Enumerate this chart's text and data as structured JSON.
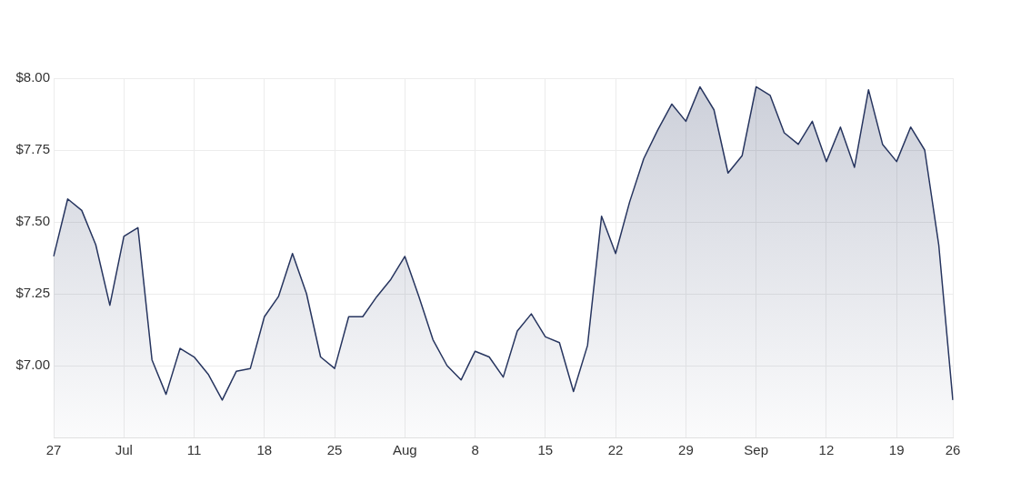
{
  "chart_data": {
    "type": "area",
    "categories": [
      "27",
      null,
      null,
      null,
      null,
      "Jul",
      null,
      null,
      null,
      null,
      "11",
      null,
      null,
      null,
      null,
      "18",
      null,
      null,
      null,
      null,
      "25",
      null,
      null,
      null,
      null,
      "Aug",
      null,
      null,
      null,
      null,
      "8",
      null,
      null,
      null,
      null,
      "15",
      null,
      null,
      null,
      null,
      "22",
      null,
      null,
      null,
      null,
      "29",
      null,
      null,
      null,
      null,
      "Sep",
      null,
      null,
      null,
      null,
      "12",
      null,
      null,
      null,
      null,
      "19",
      null,
      null,
      null,
      "26"
    ],
    "series": [
      {
        "color": "#27355f",
        "values": [
          7.38,
          7.58,
          7.54,
          7.42,
          7.21,
          7.45,
          7.48,
          7.02,
          6.9,
          7.06,
          7.03,
          6.97,
          6.88,
          6.98,
          6.99,
          7.17,
          7.24,
          7.39,
          7.25,
          7.03,
          6.99,
          7.17,
          7.17,
          7.24,
          7.3,
          7.38,
          7.24,
          7.09,
          7.0,
          6.95,
          7.05,
          7.03,
          6.96,
          7.12,
          7.18,
          7.1,
          7.08,
          6.91,
          7.07,
          7.52,
          7.39,
          7.57,
          7.72,
          7.82,
          7.91,
          7.85,
          7.97,
          7.89,
          7.67,
          7.73,
          7.97,
          7.94,
          7.81,
          7.77,
          7.85,
          7.71,
          7.83,
          7.69,
          7.96,
          7.77,
          7.71,
          7.83,
          7.75,
          7.42,
          6.88
        ]
      }
    ],
    "ylim": [
      6.75,
      8
    ],
    "yticks": [
      {
        "value": 7,
        "label": "$7.00"
      },
      {
        "value": 7.25,
        "label": "$7.25"
      },
      {
        "value": 7.5,
        "label": "$7.50"
      },
      {
        "value": 7.75,
        "label": "$7.75"
      },
      {
        "value": 8,
        "label": "$8.00"
      }
    ],
    "grid": true,
    "legend": false,
    "marker": "none",
    "line_style": "solid"
  }
}
